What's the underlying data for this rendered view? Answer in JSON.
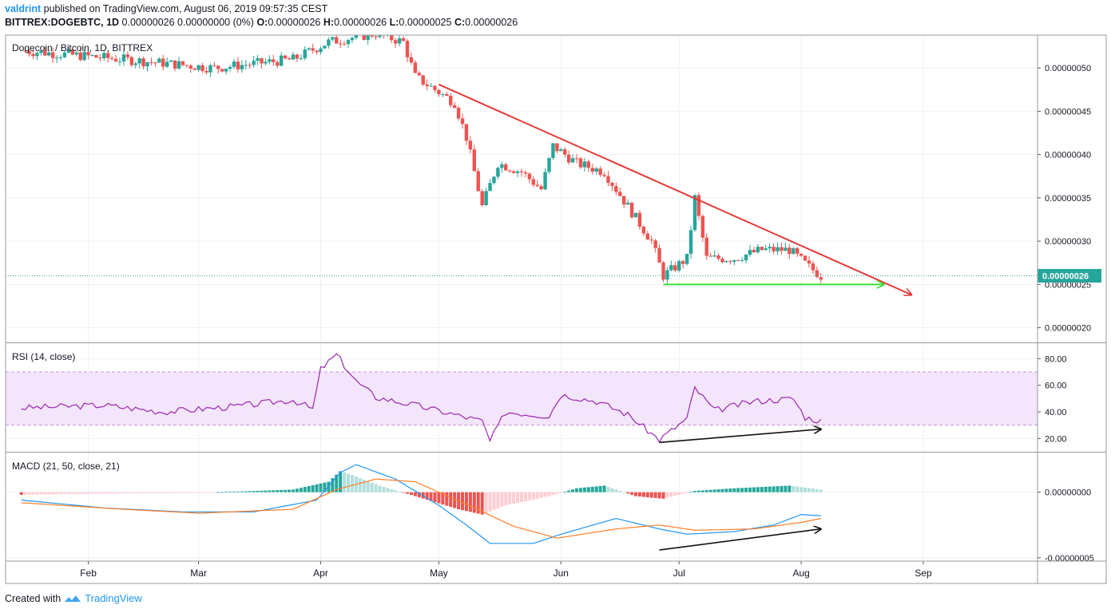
{
  "header": {
    "author": "valdrint",
    "published_text": "published on TradingView.com, August 06, 2019 09:57:35 CEST",
    "symbol": "BITTREX:DOGEBTC, 1D",
    "change": "0.00000026 0.00000000 (0%)",
    "ohlc": [
      "O:",
      "0.00000026",
      "H:",
      "0.00000026",
      "L:",
      "0.00000025",
      "C:",
      "0.00000026"
    ]
  },
  "footer": {
    "created_with": "Created with",
    "brand": "TradingView"
  },
  "colors": {
    "up": "#26a69a",
    "down": "#ef5350",
    "trendline": "#e53935",
    "support": "#3ddc35",
    "rsi": "#9c27b0",
    "rsi_band": "#f3e5fb",
    "macd": "#2196f3",
    "signal": "#ff7f27",
    "price_line": "#26a69a"
  },
  "chart_data": [
    {
      "type": "candlestick",
      "title": "Dogecoin / Bitcoin, 1D, BITTREX",
      "y_ticks": [
        "0.00000050",
        "0.00000045",
        "0.00000040",
        "0.00000035",
        "0.00000030",
        "0.00000025",
        "0.00000020"
      ],
      "ylim": [
        1.83e-07,
        5.38e-07
      ],
      "x_ticks": [
        "Feb",
        "Mar",
        "Apr",
        "May",
        "Jun",
        "Jul",
        "Aug",
        "Sep"
      ],
      "x_tick_dates": [
        "2019-02-01",
        "2019-03-01",
        "2019-04-01",
        "2019-05-01",
        "2019-06-01",
        "2019-07-01",
        "2019-08-01",
        "2019-09-01"
      ],
      "last_price_label": "0.00000026",
      "last_price": 2.6e-07,
      "approx_close_path": [
        [
          "2019-01-15",
          5.2e-07
        ],
        [
          "2019-02-10",
          5.1e-07
        ],
        [
          "2019-03-05",
          5e-07
        ],
        [
          "2019-03-25",
          5.1e-07
        ],
        [
          "2019-04-03",
          5.3e-07
        ],
        [
          "2019-04-15",
          5.4e-07
        ],
        [
          "2019-04-22",
          5.3e-07
        ],
        [
          "2019-04-25",
          4.9e-07
        ],
        [
          "2019-05-05",
          4.6e-07
        ],
        [
          "2019-05-08",
          4.2e-07
        ],
        [
          "2019-05-12",
          3.4e-07
        ],
        [
          "2019-05-16",
          3.9e-07
        ],
        [
          "2019-05-22",
          3.8e-07
        ],
        [
          "2019-05-27",
          3.6e-07
        ],
        [
          "2019-05-30",
          4.1e-07
        ],
        [
          "2019-06-05",
          3.9e-07
        ],
        [
          "2019-06-12",
          3.8e-07
        ],
        [
          "2019-06-18",
          3.4e-07
        ],
        [
          "2019-06-24",
          3e-07
        ],
        [
          "2019-06-27",
          2.6e-07
        ],
        [
          "2019-07-03",
          2.8e-07
        ],
        [
          "2019-07-05",
          3.5e-07
        ],
        [
          "2019-07-08",
          2.8e-07
        ],
        [
          "2019-07-15",
          2.8e-07
        ],
        [
          "2019-07-22",
          2.9e-07
        ],
        [
          "2019-07-29",
          2.9e-07
        ],
        [
          "2019-08-03",
          2.7e-07
        ],
        [
          "2019-08-06",
          2.6e-07
        ]
      ],
      "annotations": [
        {
          "kind": "trendline",
          "from": [
            "2019-05-01",
            4.81e-07
          ],
          "to": [
            "2019-08-29",
            2.38e-07
          ]
        },
        {
          "kind": "support-arrow",
          "from": [
            "2019-06-27",
            2.5e-07
          ],
          "to": [
            "2019-08-22",
            2.5e-07
          ]
        }
      ]
    },
    {
      "type": "line",
      "title": "RSI (14, close)",
      "y_ticks": [
        "80.00",
        "60.00",
        "40.00",
        "20.00"
      ],
      "ylim": [
        10,
        91
      ],
      "band": [
        30,
        70
      ],
      "series": [
        {
          "points": [
            [
              "2019-01-15",
              43
            ],
            [
              "2019-02-05",
              45
            ],
            [
              "2019-02-20",
              40
            ],
            [
              "2019-03-10",
              44
            ],
            [
              "2019-03-25",
              49
            ],
            [
              "2019-03-30",
              42
            ],
            [
              "2019-04-01",
              72
            ],
            [
              "2019-04-05",
              83
            ],
            [
              "2019-04-10",
              63
            ],
            [
              "2019-04-15",
              51
            ],
            [
              "2019-04-25",
              45
            ],
            [
              "2019-05-05",
              38
            ],
            [
              "2019-05-12",
              33
            ],
            [
              "2019-05-14",
              18
            ],
            [
              "2019-05-18",
              40
            ],
            [
              "2019-05-29",
              37
            ],
            [
              "2019-06-01",
              53
            ],
            [
              "2019-06-10",
              48
            ],
            [
              "2019-06-18",
              38
            ],
            [
              "2019-06-26",
              19
            ],
            [
              "2019-07-03",
              35
            ],
            [
              "2019-07-05",
              58
            ],
            [
              "2019-07-10",
              41
            ],
            [
              "2019-07-20",
              48
            ],
            [
              "2019-07-30",
              50
            ],
            [
              "2019-08-02",
              36
            ],
            [
              "2019-08-06",
              33
            ]
          ]
        }
      ],
      "annotations": [
        {
          "kind": "arrow",
          "from": [
            "2019-06-26",
            17
          ],
          "to": [
            "2019-08-06",
            27
          ]
        }
      ]
    },
    {
      "type": "line+histogram",
      "title": "MACD (21, 50, close, 21)",
      "y_ticks": [
        "0.00000000",
        "-0.00000005"
      ],
      "ylim": [
        -5.25e-08,
        3.02e-08
      ],
      "series": [
        {
          "key": "macd",
          "points": [
            [
              "2019-01-15",
              -0.6
            ],
            [
              "2019-02-05",
              -1.2
            ],
            [
              "2019-02-25",
              -1.5
            ],
            [
              "2019-03-15",
              -1.5
            ],
            [
              "2019-03-31",
              -0.6
            ],
            [
              "2019-04-06",
              1.5
            ],
            [
              "2019-04-10",
              2.1
            ],
            [
              "2019-04-20",
              1.0
            ],
            [
              "2019-05-01",
              -1.0
            ],
            [
              "2019-05-08",
              -2.5
            ],
            [
              "2019-05-14",
              -3.9
            ],
            [
              "2019-05-25",
              -3.9
            ],
            [
              "2019-06-01",
              -3.2
            ],
            [
              "2019-06-15",
              -2.0
            ],
            [
              "2019-06-26",
              -2.8
            ],
            [
              "2019-07-03",
              -3.2
            ],
            [
              "2019-07-15",
              -3.0
            ],
            [
              "2019-07-25",
              -2.5
            ],
            [
              "2019-08-01",
              -1.7
            ],
            [
              "2019-08-06",
              -1.8
            ]
          ]
        },
        {
          "key": "signal",
          "points": [
            [
              "2019-01-15",
              -0.8
            ],
            [
              "2019-02-10",
              -1.3
            ],
            [
              "2019-03-01",
              -1.6
            ],
            [
              "2019-03-25",
              -1.3
            ],
            [
              "2019-04-05",
              0.2
            ],
            [
              "2019-04-15",
              1.0
            ],
            [
              "2019-04-25",
              0.8
            ],
            [
              "2019-05-10",
              -1.2
            ],
            [
              "2019-05-20",
              -2.6
            ],
            [
              "2019-05-31",
              -3.5
            ],
            [
              "2019-06-15",
              -2.8
            ],
            [
              "2019-06-26",
              -2.5
            ],
            [
              "2019-07-05",
              -2.9
            ],
            [
              "2019-07-20",
              -2.8
            ],
            [
              "2019-08-01",
              -2.3
            ],
            [
              "2019-08-06",
              -2.0
            ]
          ]
        }
      ],
      "histogram": [
        [
          "2019-01-15",
          -0.2
        ],
        [
          "2019-02-05",
          -0.1
        ],
        [
          "2019-03-01",
          -0.05
        ],
        [
          "2019-03-25",
          0.2
        ],
        [
          "2019-04-03",
          0.8
        ],
        [
          "2019-04-06",
          1.6
        ],
        [
          "2019-04-10",
          1.2
        ],
        [
          "2019-04-16",
          0.5
        ],
        [
          "2019-04-25",
          -0.3
        ],
        [
          "2019-05-06",
          -1.3
        ],
        [
          "2019-05-12",
          -1.7
        ],
        [
          "2019-05-18",
          -1.0
        ],
        [
          "2019-05-29",
          -0.3
        ],
        [
          "2019-06-05",
          0.3
        ],
        [
          "2019-06-12",
          0.5
        ],
        [
          "2019-06-20",
          -0.3
        ],
        [
          "2019-06-27",
          -0.5
        ],
        [
          "2019-07-05",
          0.1
        ],
        [
          "2019-07-15",
          0.3
        ],
        [
          "2019-07-29",
          0.5
        ],
        [
          "2019-08-06",
          0.2
        ]
      ],
      "value_unit": 1e-08,
      "annotations": [
        {
          "kind": "arrow",
          "from": [
            "2019-06-26",
            -4.4
          ],
          "to": [
            "2019-08-06",
            -2.8
          ]
        }
      ]
    }
  ]
}
